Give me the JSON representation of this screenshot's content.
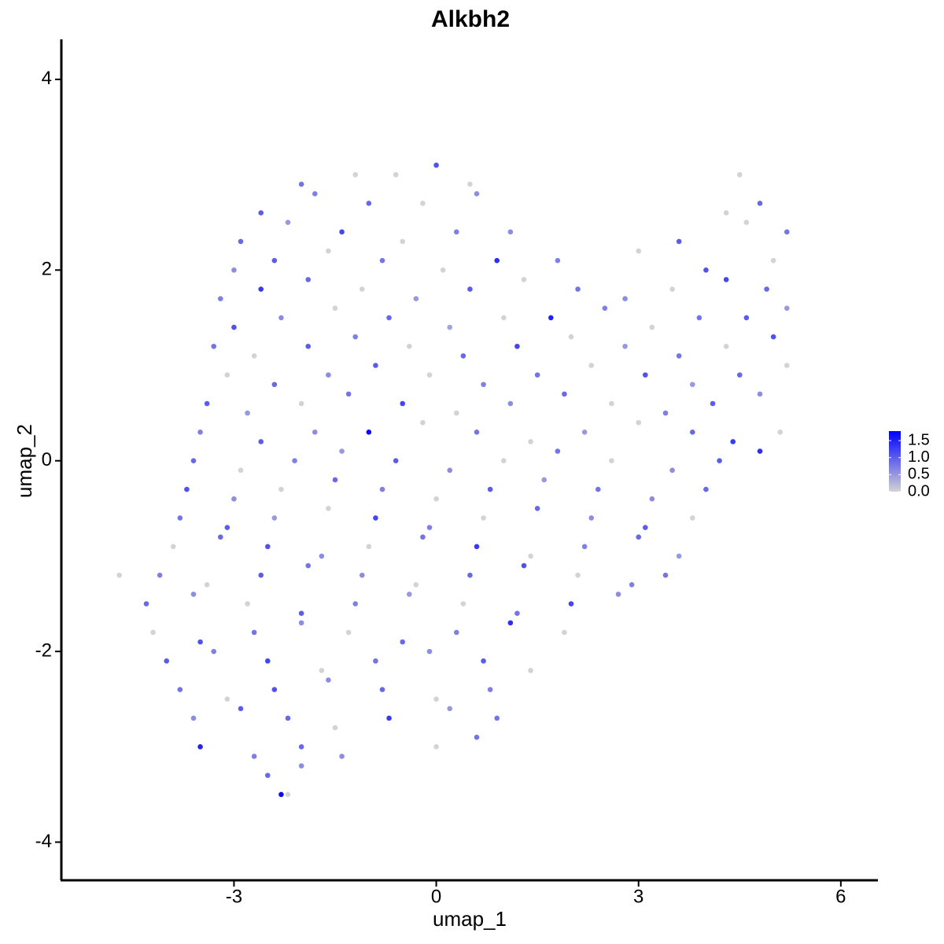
{
  "chart_data": {
    "type": "scatter",
    "title": "Alkbh2",
    "x_label": "umap_1",
    "y_label": "umap_2",
    "xlim": [
      -5.56,
      6.55
    ],
    "ylim": [
      -4.4,
      4.42
    ],
    "xticks": [
      -3,
      0,
      3,
      6
    ],
    "yticks": [
      -4,
      -2,
      0,
      2,
      4
    ],
    "color_low": "#d3d3d3",
    "color_high": "#0000ff",
    "color_range": [
      0,
      1.78
    ],
    "color_ticks": [
      {
        "value": 0,
        "label": "0.0"
      },
      {
        "value": 0.5,
        "label": "0.5"
      },
      {
        "value": 1,
        "label": "1.0"
      },
      {
        "value": 1.5,
        "label": "1.5"
      }
    ],
    "x": [
      -2.0,
      -1.2,
      -0.6,
      0.0,
      0.5,
      4.5,
      -2.6,
      -1.8,
      -1.0,
      -0.2,
      0.6,
      4.3,
      4.8,
      -2.9,
      -2.2,
      -1.4,
      -0.5,
      0.3,
      1.1,
      3.6,
      4.6,
      5.2,
      -3.0,
      -2.4,
      -1.6,
      -0.8,
      0.1,
      0.9,
      1.8,
      3.0,
      4.0,
      5.0,
      -3.2,
      -2.6,
      -1.9,
      -1.1,
      -0.3,
      0.5,
      1.3,
      2.1,
      2.8,
      3.5,
      4.3,
      4.9,
      -3.0,
      -2.3,
      -1.5,
      -0.7,
      0.2,
      1.0,
      1.7,
      2.5,
      3.2,
      3.9,
      4.6,
      5.2,
      -3.3,
      -2.7,
      -1.9,
      -1.2,
      -0.4,
      0.4,
      1.2,
      2.0,
      2.8,
      3.6,
      4.3,
      5.0,
      -3.1,
      -2.4,
      -1.6,
      -0.9,
      -0.1,
      0.7,
      1.5,
      2.3,
      3.1,
      3.8,
      4.5,
      5.2,
      -3.4,
      -2.8,
      -2.0,
      -1.3,
      -0.5,
      0.3,
      1.1,
      1.9,
      2.6,
      3.4,
      4.1,
      4.8,
      -3.5,
      -2.6,
      -1.8,
      -1.0,
      -0.2,
      0.6,
      1.4,
      2.2,
      3.0,
      3.8,
      4.4,
      5.1,
      -3.6,
      -2.9,
      -2.1,
      -1.4,
      -0.6,
      0.2,
      1.0,
      1.8,
      2.6,
      3.5,
      4.2,
      4.8,
      -3.7,
      -3.0,
      -2.3,
      -1.5,
      -0.8,
      0.0,
      0.8,
      1.6,
      2.4,
      3.2,
      4.0,
      -3.8,
      -3.1,
      -2.4,
      -1.6,
      -0.9,
      -0.1,
      0.7,
      1.5,
      2.3,
      3.1,
      3.8,
      -3.9,
      -3.2,
      -2.5,
      -1.7,
      -1.0,
      -0.2,
      0.6,
      1.4,
      2.2,
      3.0,
      3.6,
      -4.1,
      -3.4,
      -2.6,
      -1.9,
      -1.1,
      -0.3,
      0.5,
      1.3,
      2.1,
      2.9,
      3.4,
      -4.3,
      -3.6,
      -2.8,
      -2.0,
      -1.2,
      -0.4,
      0.4,
      1.2,
      2.0,
      2.7,
      -4.2,
      -3.5,
      -2.7,
      -2.0,
      -1.3,
      -0.5,
      0.3,
      1.1,
      1.9,
      -4.0,
      -3.3,
      -2.5,
      -1.7,
      -0.9,
      -0.1,
      0.7,
      1.4,
      -3.8,
      -3.1,
      -2.4,
      -1.6,
      -0.8,
      0.0,
      0.8,
      -3.6,
      -2.9,
      -2.2,
      -1.5,
      -0.7,
      0.2,
      0.9,
      -3.5,
      -2.7,
      -2.0,
      -1.4,
      0.0,
      0.6,
      -2.5,
      -2.0,
      -2.3,
      -2.2,
      -4.7
    ],
    "y": [
      2.9,
      3.0,
      3.0,
      3.1,
      2.9,
      3.0,
      2.6,
      2.8,
      2.7,
      2.7,
      2.8,
      2.6,
      2.7,
      2.3,
      2.5,
      2.4,
      2.3,
      2.4,
      2.4,
      2.3,
      2.5,
      2.4,
      2.0,
      2.1,
      2.2,
      2.1,
      2.0,
      2.1,
      2.1,
      2.2,
      2.0,
      2.1,
      1.7,
      1.8,
      1.9,
      1.8,
      1.7,
      1.8,
      1.9,
      1.8,
      1.7,
      1.8,
      1.9,
      1.8,
      1.4,
      1.5,
      1.6,
      1.5,
      1.4,
      1.5,
      1.5,
      1.6,
      1.4,
      1.5,
      1.5,
      1.6,
      1.2,
      1.1,
      1.2,
      1.3,
      1.2,
      1.1,
      1.2,
      1.3,
      1.2,
      1.1,
      1.2,
      1.3,
      0.9,
      0.8,
      0.9,
      1.0,
      0.9,
      0.8,
      0.9,
      1.0,
      0.9,
      0.8,
      0.9,
      1.0,
      0.6,
      0.5,
      0.6,
      0.7,
      0.6,
      0.5,
      0.6,
      0.7,
      0.6,
      0.5,
      0.6,
      0.7,
      0.3,
      0.2,
      0.3,
      0.3,
      0.4,
      0.3,
      0.2,
      0.3,
      0.4,
      0.3,
      0.2,
      0.3,
      0.0,
      -0.1,
      0.0,
      0.1,
      0.0,
      -0.1,
      0.0,
      0.1,
      0.0,
      -0.1,
      0.0,
      0.1,
      -0.3,
      -0.4,
      -0.3,
      -0.2,
      -0.3,
      -0.4,
      -0.3,
      -0.2,
      -0.3,
      -0.4,
      -0.3,
      -0.6,
      -0.7,
      -0.6,
      -0.5,
      -0.6,
      -0.7,
      -0.6,
      -0.5,
      -0.6,
      -0.7,
      -0.6,
      -0.9,
      -0.8,
      -0.9,
      -1.0,
      -0.9,
      -0.8,
      -0.9,
      -1.0,
      -0.9,
      -0.8,
      -1.0,
      -1.2,
      -1.3,
      -1.2,
      -1.1,
      -1.2,
      -1.3,
      -1.2,
      -1.1,
      -1.2,
      -1.3,
      -1.2,
      -1.5,
      -1.4,
      -1.5,
      -1.6,
      -1.5,
      -1.4,
      -1.5,
      -1.6,
      -1.5,
      -1.4,
      -1.8,
      -1.9,
      -1.8,
      -1.7,
      -1.8,
      -1.9,
      -1.8,
      -1.7,
      -1.8,
      -2.1,
      -2.0,
      -2.1,
      -2.2,
      -2.1,
      -2.0,
      -2.1,
      -2.2,
      -2.4,
      -2.5,
      -2.4,
      -2.3,
      -2.4,
      -2.5,
      -2.4,
      -2.7,
      -2.6,
      -2.7,
      -2.8,
      -2.7,
      -2.6,
      -2.7,
      -3.0,
      -3.1,
      -3.0,
      -3.1,
      -3.0,
      -2.9,
      -3.3,
      -3.2,
      -3.5,
      -3.5,
      -1.2
    ],
    "values": [
      0.8,
      0,
      0,
      1.1,
      0,
      0,
      1.0,
      0.7,
      0.9,
      0,
      0.6,
      0,
      0.9,
      0.9,
      0.5,
      1.2,
      0,
      0.7,
      0.6,
      1.0,
      0,
      0.8,
      0.6,
      1.0,
      0,
      0.8,
      0,
      1.4,
      0.7,
      0,
      1.1,
      0,
      0.7,
      1.3,
      0.9,
      0,
      0.5,
      1.0,
      0,
      0.8,
      0.6,
      0,
      1.2,
      0.9,
      1.1,
      0.6,
      0,
      0.9,
      0.4,
      0,
      1.5,
      0.7,
      0,
      0.8,
      1.0,
      0.5,
      0.8,
      0,
      1.0,
      0.7,
      0,
      0.9,
      1.2,
      0,
      0.5,
      0.8,
      0,
      1.1,
      0,
      0.9,
      0.6,
      1.0,
      0,
      0.7,
      0.8,
      0,
      1.1,
      0.5,
      0.9,
      0,
      1.0,
      0.5,
      0,
      0.8,
      1.2,
      0,
      0.6,
      0.9,
      0,
      0.7,
      1.0,
      0.6,
      0.7,
      1.0,
      0.6,
      1.7,
      0,
      0.8,
      0,
      0.5,
      0,
      0.9,
      1.3,
      0,
      0.9,
      0,
      0.7,
      0.5,
      1.0,
      0.6,
      0,
      0.8,
      0,
      0.6,
      1.0,
      1.4,
      1.1,
      0.6,
      0,
      0.9,
      0.7,
      0,
      1.0,
      0.5,
      0.8,
      0.6,
      0.9,
      0.8,
      1.0,
      0.5,
      0,
      1.2,
      0.7,
      0,
      0.9,
      0.6,
      1.0,
      0,
      0,
      0.9,
      1.1,
      0.6,
      0,
      0.8,
      1.3,
      0,
      0.7,
      0.9,
      0.5,
      0.7,
      0,
      1.0,
      0.8,
      0.6,
      0,
      0.9,
      1.1,
      0,
      0.7,
      0.8,
      0.9,
      0.6,
      0,
      1.0,
      0.7,
      0.5,
      0,
      0.8,
      1.2,
      0.6,
      0,
      1.1,
      0.8,
      0.6,
      0,
      0.9,
      0.7,
      1.4,
      0,
      1.0,
      0.7,
      1.2,
      0,
      0.8,
      0.6,
      1.0,
      0,
      0.8,
      0,
      1.1,
      0.6,
      0.9,
      0,
      0.7,
      0.6,
      1.0,
      0.9,
      0,
      1.3,
      0.5,
      0.8,
      1.5,
      0.7,
      0.9,
      0.6,
      0,
      0.8,
      0.9,
      0.6,
      1.7,
      0,
      0
    ]
  }
}
